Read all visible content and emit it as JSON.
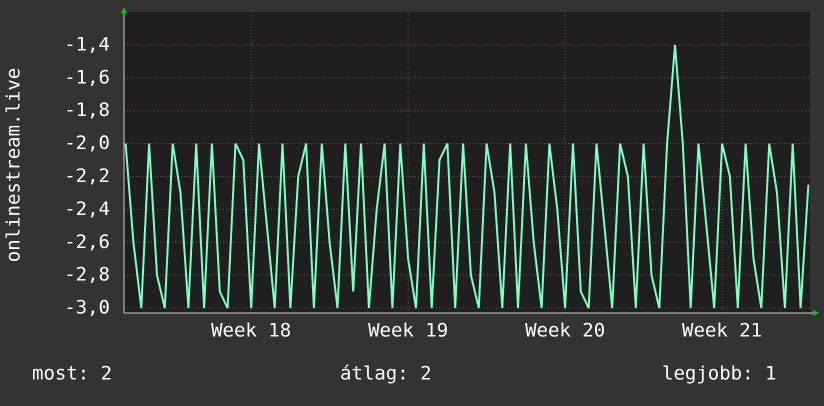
{
  "chart_data": {
    "type": "line",
    "ylabel": "onlinestream.live",
    "xlim": [
      17.19,
      21.56
    ],
    "xticks": [
      {
        "value": 18,
        "label": "Week 18"
      },
      {
        "value": 19,
        "label": "Week 19"
      },
      {
        "value": 20,
        "label": "Week 20"
      },
      {
        "value": 21,
        "label": "Week 21"
      }
    ],
    "ylim": [
      -3.03,
      -1.2
    ],
    "yticks": [
      {
        "value": -3.0,
        "label": "-3,0"
      },
      {
        "value": -2.8,
        "label": "-2,8"
      },
      {
        "value": -2.6,
        "label": "-2,6"
      },
      {
        "value": -2.4,
        "label": "-2,4"
      },
      {
        "value": -2.2,
        "label": "-2,2"
      },
      {
        "value": -2.0,
        "label": "-2,0"
      },
      {
        "value": -1.8,
        "label": "-1,8"
      },
      {
        "value": -1.6,
        "label": "-1,6"
      },
      {
        "value": -1.4,
        "label": "-1,4"
      }
    ],
    "grid": true,
    "x": [
      17.2,
      17.25,
      17.3,
      17.35,
      17.4,
      17.45,
      17.5,
      17.55,
      17.6,
      17.65,
      17.7,
      17.75,
      17.8,
      17.85,
      17.9,
      17.95,
      18.0,
      18.05,
      18.1,
      18.15,
      18.2,
      18.25,
      18.3,
      18.35,
      18.4,
      18.45,
      18.5,
      18.55,
      18.6,
      18.65,
      18.7,
      18.75,
      18.8,
      18.85,
      18.9,
      18.95,
      19.0,
      19.05,
      19.1,
      19.15,
      19.2,
      19.25,
      19.3,
      19.35,
      19.4,
      19.45,
      19.5,
      19.55,
      19.6,
      19.65,
      19.7,
      19.75,
      19.8,
      19.85,
      19.9,
      19.95,
      20.0,
      20.05,
      20.1,
      20.15,
      20.2,
      20.25,
      20.3,
      20.35,
      20.4,
      20.45,
      20.5,
      20.55,
      20.6,
      20.65,
      20.7,
      20.75,
      20.8,
      20.85,
      20.9,
      20.95,
      21.0,
      21.05,
      21.1,
      21.15,
      21.2,
      21.25,
      21.3,
      21.35,
      21.4,
      21.45,
      21.5,
      21.55
    ],
    "series": [
      {
        "color": "#80ffc0",
        "values": [
          -2.0,
          -2.6,
          -3.0,
          -2.0,
          -2.8,
          -3.0,
          -2.0,
          -2.3,
          -3.0,
          -2.0,
          -3.0,
          -2.0,
          -2.9,
          -3.0,
          -2.0,
          -2.1,
          -3.0,
          -2.0,
          -2.5,
          -3.0,
          -2.0,
          -3.0,
          -2.2,
          -2.0,
          -3.0,
          -2.0,
          -2.6,
          -3.0,
          -2.0,
          -2.9,
          -2.0,
          -3.0,
          -2.4,
          -2.0,
          -3.0,
          -2.0,
          -2.7,
          -3.0,
          -2.0,
          -3.0,
          -2.1,
          -2.0,
          -3.0,
          -2.0,
          -2.8,
          -3.0,
          -2.0,
          -2.3,
          -3.0,
          -2.0,
          -3.0,
          -2.0,
          -2.6,
          -3.0,
          -2.0,
          -2.4,
          -3.0,
          -2.0,
          -2.9,
          -3.0,
          -2.0,
          -2.5,
          -3.0,
          -2.0,
          -2.2,
          -3.0,
          -2.0,
          -2.8,
          -3.0,
          -2.0,
          -1.4,
          -2.0,
          -3.0,
          -2.0,
          -2.5,
          -3.0,
          -2.0,
          -2.2,
          -3.0,
          -2.0,
          -2.7,
          -3.0,
          -2.0,
          -2.3,
          -3.0,
          -2.0,
          -3.0,
          -2.25
        ]
      }
    ],
    "footer": {
      "current": "most: 2",
      "average": "átlag: 2",
      "best": "legjobb: 1"
    }
  }
}
